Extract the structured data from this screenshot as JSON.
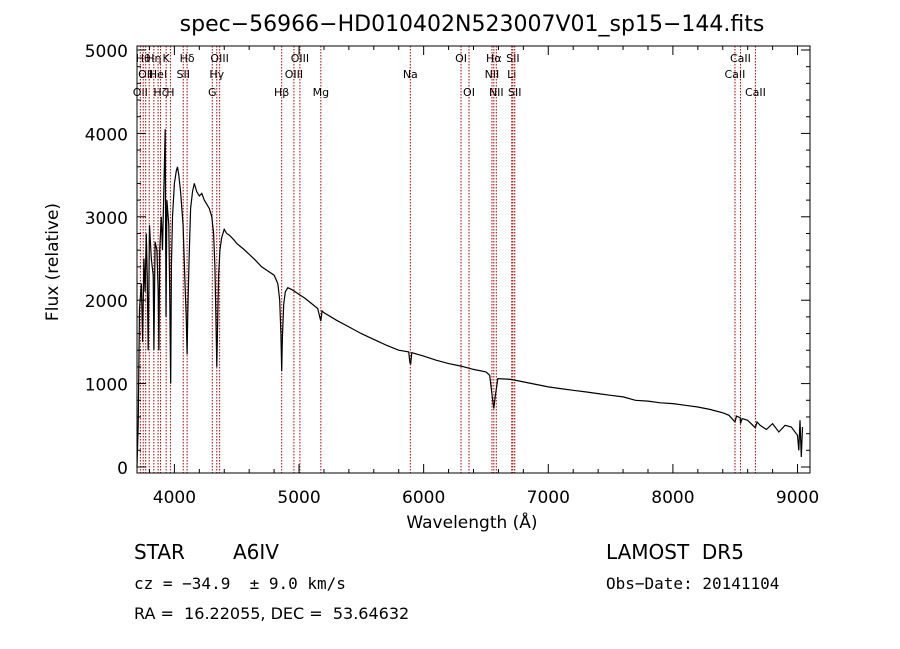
{
  "chart_data": {
    "type": "line",
    "title": "spec−56966−HD010402N523007V01_sp15−144.fits",
    "xlabel": "Wavelength (Å)",
    "ylabel": "Flux (relative)",
    "xlim": [
      3700,
      9100
    ],
    "ylim": [
      0,
      5200
    ],
    "xticks": [
      4000,
      5000,
      6000,
      7000,
      8000,
      9000
    ],
    "yticks": [
      0,
      1000,
      2000,
      3000,
      4000,
      5000
    ],
    "grid": false,
    "series": [
      {
        "color": "#000000",
        "points": [
          [
            3700,
            0
          ],
          [
            3710,
            500
          ],
          [
            3720,
            1900
          ],
          [
            3735,
            2200
          ],
          [
            3745,
            1500
          ],
          [
            3755,
            2500
          ],
          [
            3765,
            2100
          ],
          [
            3775,
            2800
          ],
          [
            3782,
            2300
          ],
          [
            3790,
            1400
          ],
          [
            3800,
            2900
          ],
          [
            3815,
            2500
          ],
          [
            3830,
            2300
          ],
          [
            3836,
            1400
          ],
          [
            3845,
            2700
          ],
          [
            3860,
            2600
          ],
          [
            3870,
            2100
          ],
          [
            3876,
            1400
          ],
          [
            3882,
            2600
          ],
          [
            3895,
            3000
          ],
          [
            3905,
            2600
          ],
          [
            3915,
            3300
          ],
          [
            3926,
            4050
          ],
          [
            3933,
            1800
          ],
          [
            3940,
            3200
          ],
          [
            3955,
            2900
          ],
          [
            3962,
            2100
          ],
          [
            3970,
            1000
          ],
          [
            3976,
            2400
          ],
          [
            3985,
            3000
          ],
          [
            4000,
            3400
          ],
          [
            4015,
            3550
          ],
          [
            4025,
            3600
          ],
          [
            4035,
            3500
          ],
          [
            4050,
            3300
          ],
          [
            4070,
            2900
          ],
          [
            4085,
            2200
          ],
          [
            4095,
            1800
          ],
          [
            4102,
            1350
          ],
          [
            4108,
            1850
          ],
          [
            4118,
            2500
          ],
          [
            4130,
            3100
          ],
          [
            4145,
            3300
          ],
          [
            4160,
            3400
          ],
          [
            4180,
            3300
          ],
          [
            4200,
            3250
          ],
          [
            4220,
            3280
          ],
          [
            4240,
            3200
          ],
          [
            4260,
            3150
          ],
          [
            4280,
            3100
          ],
          [
            4300,
            3000
          ],
          [
            4315,
            2800
          ],
          [
            4325,
            2400
          ],
          [
            4333,
            1800
          ],
          [
            4340,
            1200
          ],
          [
            4347,
            1700
          ],
          [
            4355,
            2300
          ],
          [
            4365,
            2600
          ],
          [
            4380,
            2750
          ],
          [
            4400,
            2850
          ],
          [
            4420,
            2800
          ],
          [
            4440,
            2780
          ],
          [
            4460,
            2750
          ],
          [
            4480,
            2720
          ],
          [
            4500,
            2680
          ],
          [
            4550,
            2620
          ],
          [
            4600,
            2550
          ],
          [
            4650,
            2480
          ],
          [
            4700,
            2400
          ],
          [
            4750,
            2350
          ],
          [
            4800,
            2300
          ],
          [
            4830,
            2200
          ],
          [
            4845,
            2000
          ],
          [
            4855,
            1600
          ],
          [
            4861,
            1150
          ],
          [
            4867,
            1550
          ],
          [
            4877,
            1950
          ],
          [
            4890,
            2100
          ],
          [
            4910,
            2150
          ],
          [
            4940,
            2130
          ],
          [
            4970,
            2100
          ],
          [
            5000,
            2070
          ],
          [
            5050,
            2020
          ],
          [
            5100,
            1960
          ],
          [
            5150,
            1900
          ],
          [
            5175,
            1750
          ],
          [
            5185,
            1870
          ],
          [
            5200,
            1850
          ],
          [
            5300,
            1760
          ],
          [
            5400,
            1680
          ],
          [
            5500,
            1600
          ],
          [
            5600,
            1530
          ],
          [
            5700,
            1460
          ],
          [
            5800,
            1400
          ],
          [
            5880,
            1380
          ],
          [
            5890,
            1250
          ],
          [
            5896,
            1240
          ],
          [
            5905,
            1370
          ],
          [
            6000,
            1330
          ],
          [
            6100,
            1280
          ],
          [
            6200,
            1240
          ],
          [
            6300,
            1210
          ],
          [
            6400,
            1170
          ],
          [
            6500,
            1140
          ],
          [
            6530,
            1100
          ],
          [
            6550,
            850
          ],
          [
            6563,
            700
          ],
          [
            6575,
            850
          ],
          [
            6595,
            1060
          ],
          [
            6700,
            1050
          ],
          [
            6800,
            1020
          ],
          [
            6900,
            990
          ],
          [
            7000,
            960
          ],
          [
            7100,
            940
          ],
          [
            7200,
            920
          ],
          [
            7300,
            900
          ],
          [
            7400,
            880
          ],
          [
            7500,
            860
          ],
          [
            7600,
            840
          ],
          [
            7700,
            800
          ],
          [
            7800,
            790
          ],
          [
            7900,
            770
          ],
          [
            8000,
            760
          ],
          [
            8100,
            740
          ],
          [
            8200,
            720
          ],
          [
            8300,
            690
          ],
          [
            8400,
            650
          ],
          [
            8450,
            620
          ],
          [
            8498,
            540
          ],
          [
            8510,
            610
          ],
          [
            8540,
            590
          ],
          [
            8542,
            520
          ],
          [
            8555,
            580
          ],
          [
            8600,
            560
          ],
          [
            8662,
            470
          ],
          [
            8675,
            540
          ],
          [
            8700,
            500
          ],
          [
            8750,
            450
          ],
          [
            8800,
            520
          ],
          [
            8850,
            420
          ],
          [
            8900,
            500
          ],
          [
            8950,
            480
          ],
          [
            9000,
            380
          ],
          [
            9010,
            200
          ],
          [
            9020,
            560
          ],
          [
            9030,
            120
          ],
          [
            9040,
            480
          ]
        ]
      }
    ],
    "lines": [
      {
        "x": 3727,
        "labels": [
          {
            "row": 3,
            "text": "OII"
          }
        ]
      },
      {
        "x": 3750,
        "labels": [
          {
            "row": 1,
            "text": "Hθ"
          }
        ]
      },
      {
        "x": 3770,
        "labels": [
          {
            "row": 2,
            "text": "OII"
          }
        ]
      },
      {
        "x": 3798,
        "labels": [
          {
            "row": 1,
            "text": ""
          }
        ]
      },
      {
        "x": 3835,
        "labels": [
          {
            "row": 1,
            "text": "Hη"
          }
        ]
      },
      {
        "x": 3869,
        "labels": [
          {
            "row": 2,
            "text": "HeI"
          }
        ]
      },
      {
        "x": 3889,
        "labels": [
          {
            "row": 3,
            "text": "Hζ"
          }
        ]
      },
      {
        "x": 3934,
        "labels": [
          {
            "row": 1,
            "text": "K"
          }
        ]
      },
      {
        "x": 3968,
        "labels": [
          {
            "row": 3,
            "text": "H"
          }
        ]
      },
      {
        "x": 4071,
        "labels": [
          {
            "row": 2,
            "text": "SII"
          }
        ]
      },
      {
        "x": 4102,
        "labels": [
          {
            "row": 1,
            "text": "Hδ"
          }
        ]
      },
      {
        "x": 4304,
        "labels": [
          {
            "row": 3,
            "text": "G"
          }
        ]
      },
      {
        "x": 4340,
        "labels": [
          {
            "row": 2,
            "text": "Hγ"
          }
        ]
      },
      {
        "x": 4363,
        "labels": [
          {
            "row": 1,
            "text": "OIII"
          }
        ]
      },
      {
        "x": 4861,
        "labels": [
          {
            "row": 3,
            "text": "Hβ"
          }
        ]
      },
      {
        "x": 4959,
        "labels": [
          {
            "row": 2,
            "text": "OIII"
          }
        ]
      },
      {
        "x": 5007,
        "labels": [
          {
            "row": 1,
            "text": "OIII"
          }
        ]
      },
      {
        "x": 5175,
        "labels": [
          {
            "row": 3,
            "text": "Mg"
          }
        ]
      },
      {
        "x": 5893,
        "labels": [
          {
            "row": 2,
            "text": "Na"
          }
        ]
      },
      {
        "x": 6300,
        "labels": [
          {
            "row": 1,
            "text": "OI"
          }
        ]
      },
      {
        "x": 6364,
        "labels": [
          {
            "row": 3,
            "text": "OI"
          }
        ]
      },
      {
        "x": 6548,
        "labels": [
          {
            "row": 2,
            "text": "NII"
          }
        ]
      },
      {
        "x": 6563,
        "labels": [
          {
            "row": 1,
            "text": "Hα"
          }
        ]
      },
      {
        "x": 6583,
        "labels": [
          {
            "row": 3,
            "text": "NII"
          }
        ]
      },
      {
        "x": 6707,
        "labels": [
          {
            "row": 2,
            "text": "Li"
          }
        ]
      },
      {
        "x": 6716,
        "labels": [
          {
            "row": 1,
            "text": "SII"
          }
        ]
      },
      {
        "x": 6731,
        "labels": [
          {
            "row": 3,
            "text": "SII"
          }
        ]
      },
      {
        "x": 8498,
        "labels": [
          {
            "row": 2,
            "text": "CaII"
          }
        ]
      },
      {
        "x": 8542,
        "labels": [
          {
            "row": 1,
            "text": "CaII"
          }
        ]
      },
      {
        "x": 8662,
        "labels": [
          {
            "row": 3,
            "text": "CaII"
          }
        ]
      }
    ],
    "line_color": "#aa0000"
  },
  "info": {
    "object_type": "STAR",
    "spectral_class": "A6IV",
    "survey": "LAMOST  DR5",
    "cz_text": "cz = −34.9  ± 9.0 km/s",
    "obs_date": "Obs−Date: 20141104",
    "coords": "RA =  16.22055, DEC =  53.64632"
  }
}
